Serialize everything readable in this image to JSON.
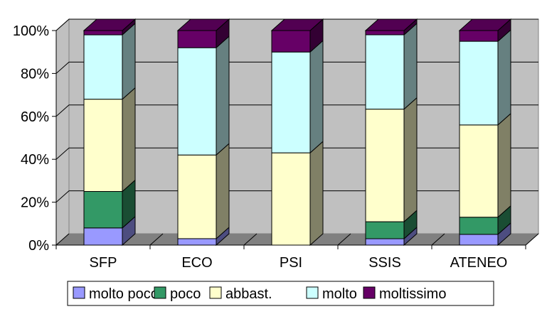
{
  "chart_data": {
    "type": "bar",
    "stacked": "percent",
    "three_d": true,
    "categories": [
      "SFP",
      "ECO",
      "PSI",
      "SSIS",
      "ATENEO"
    ],
    "series": [
      {
        "name": "molto poco",
        "color": "#9999ff",
        "values": [
          8,
          3,
          0,
          3,
          5
        ]
      },
      {
        "name": "poco",
        "color": "#339966",
        "values": [
          17,
          0,
          0,
          8,
          8
        ]
      },
      {
        "name": "abbast.",
        "color": "#ffffcc",
        "values": [
          43,
          39,
          43,
          53,
          43
        ]
      },
      {
        "name": "molto",
        "color": "#ccffff",
        "values": [
          30,
          50,
          47,
          35,
          39
        ]
      },
      {
        "name": "moltissimo",
        "color": "#660066",
        "values": [
          2,
          8,
          10,
          2,
          5
        ]
      }
    ],
    "yticks": [
      "0%",
      "20%",
      "40%",
      "60%",
      "80%",
      "100%"
    ],
    "ylim": [
      0,
      100
    ],
    "grid": true,
    "legend_position": "bottom",
    "title": "",
    "xlabel": "",
    "ylabel": ""
  }
}
